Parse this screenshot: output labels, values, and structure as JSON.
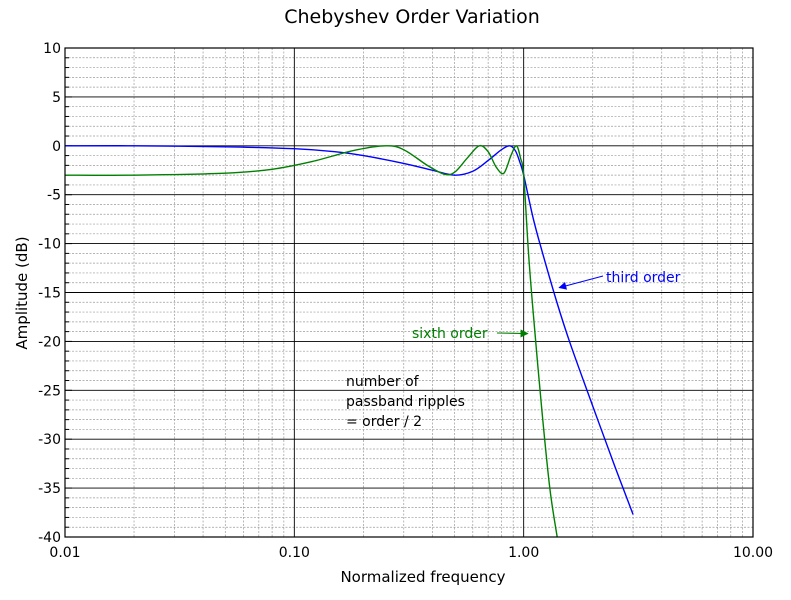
{
  "chart_data": {
    "type": "line",
    "title": "Chebyshev Order Variation",
    "xlabel": "Normalized frequency",
    "ylabel": "Amplitude (dB)",
    "x_scale": "log",
    "xlim": [
      0.01,
      10
    ],
    "ylim": [
      -40,
      10
    ],
    "grid": true,
    "x_ticks": [
      0.01,
      0.1,
      1,
      10
    ],
    "x_tick_labels": [
      "0.01",
      "0.10",
      "1.00",
      "10.00"
    ],
    "y_ticks": [
      10,
      5,
      0,
      -5,
      -10,
      -15,
      -20,
      -25,
      -30,
      -35,
      -40
    ],
    "y_tick_labels": [
      "10",
      "5",
      "0",
      "-5",
      "-10",
      "-15",
      "-20",
      "-25",
      "-30",
      "-35",
      "-40"
    ],
    "series": [
      {
        "name": "third order",
        "color": "#0000ff",
        "x": [
          0.01,
          0.02,
          0.05,
          0.1,
          0.15,
          0.2,
          0.3,
          0.4,
          0.5,
          0.6,
          0.7,
          0.8,
          0.87,
          0.92,
          0.96,
          1.0,
          1.1,
          1.2,
          1.4,
          1.6,
          2.0,
          2.5,
          3.0
        ],
        "y": [
          0.0,
          0.0,
          -0.1,
          -0.3,
          -0.6,
          -1.0,
          -1.8,
          -2.5,
          -3.0,
          -2.6,
          -1.5,
          -0.4,
          0.0,
          -0.5,
          -1.6,
          -3.0,
          -7.4,
          -10.7,
          -16.1,
          -20.3,
          -26.6,
          -32.8,
          -37.7
        ]
      },
      {
        "name": "sixth order",
        "color": "#008000",
        "x": [
          0.01,
          0.02,
          0.05,
          0.08,
          0.12,
          0.18,
          0.25,
          0.3,
          0.38,
          0.45,
          0.5,
          0.57,
          0.64,
          0.7,
          0.76,
          0.82,
          0.88,
          0.93,
          0.97,
          1.0,
          1.05,
          1.1,
          1.2,
          1.3,
          1.4
        ],
        "y": [
          -3.0,
          -3.0,
          -2.8,
          -2.4,
          -1.6,
          -0.5,
          0.0,
          -0.4,
          -2.0,
          -2.9,
          -2.7,
          -1.2,
          0.0,
          -0.6,
          -2.2,
          -2.8,
          -1.0,
          0.0,
          -1.3,
          -3.0,
          -11.0,
          -17.0,
          -27.0,
          -35.0,
          -40.0
        ]
      }
    ],
    "annotations": [
      {
        "text": "third order",
        "color": "#0000ff",
        "arrow_to": {
          "x": 1.43,
          "y": -14.5
        }
      },
      {
        "text": "sixth order",
        "color": "#008000",
        "arrow_to": {
          "x": 1.04,
          "y": -19.2
        }
      },
      {
        "text_lines": [
          "number of",
          "passband ripples",
          "= order / 2"
        ],
        "color": "#000000"
      }
    ]
  }
}
